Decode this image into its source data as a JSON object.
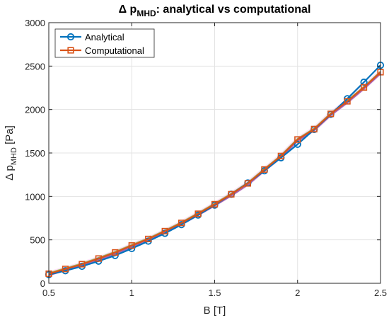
{
  "chart_data": {
    "type": "line",
    "title": {
      "prefix": "Δ p",
      "subscript": "MHD",
      "suffix": ": analytical vs computational"
    },
    "xlabel": "B [T]",
    "ylabel": {
      "prefix": "Δ p",
      "subscript": "MHD",
      "suffix": " [Pa]"
    },
    "xlim": [
      0.5,
      2.5
    ],
    "ylim": [
      0,
      3000
    ],
    "xticks": [
      0.5,
      1,
      1.5,
      2,
      2.5
    ],
    "xtick_labels": [
      "0.5",
      "1",
      "1.5",
      "2",
      "2.5"
    ],
    "yticks": [
      0,
      500,
      1000,
      1500,
      2000,
      2500,
      3000
    ],
    "ytick_labels": [
      "0",
      "500",
      "1000",
      "1500",
      "2000",
      "2500",
      "3000"
    ],
    "grid": true,
    "legend_position": "top-left",
    "x": [
      0.5,
      0.6,
      0.7,
      0.8,
      0.9,
      1.0,
      1.1,
      1.2,
      1.3,
      1.4,
      1.5,
      1.6,
      1.7,
      1.8,
      1.9,
      2.0,
      2.1,
      2.2,
      2.3,
      2.4,
      2.5
    ],
    "series": [
      {
        "name": "Analytical",
        "color": "#0072BD",
        "marker": "circle",
        "values": [
          100,
          145,
          195,
          255,
          320,
          400,
          485,
          575,
          675,
          785,
          900,
          1025,
          1155,
          1295,
          1445,
          1600,
          1770,
          1945,
          2125,
          2315,
          2510
        ]
      },
      {
        "name": "Computational",
        "color": "#D95319",
        "marker": "square",
        "values": [
          110,
          165,
          220,
          285,
          355,
          435,
          510,
          600,
          695,
          800,
          910,
          1025,
          1150,
          1310,
          1465,
          1655,
          1775,
          1950,
          2095,
          2255,
          2430
        ]
      }
    ],
    "highlight_colors": [
      "#7E2F8E",
      "#77AC30",
      "#FF8CE0"
    ]
  }
}
